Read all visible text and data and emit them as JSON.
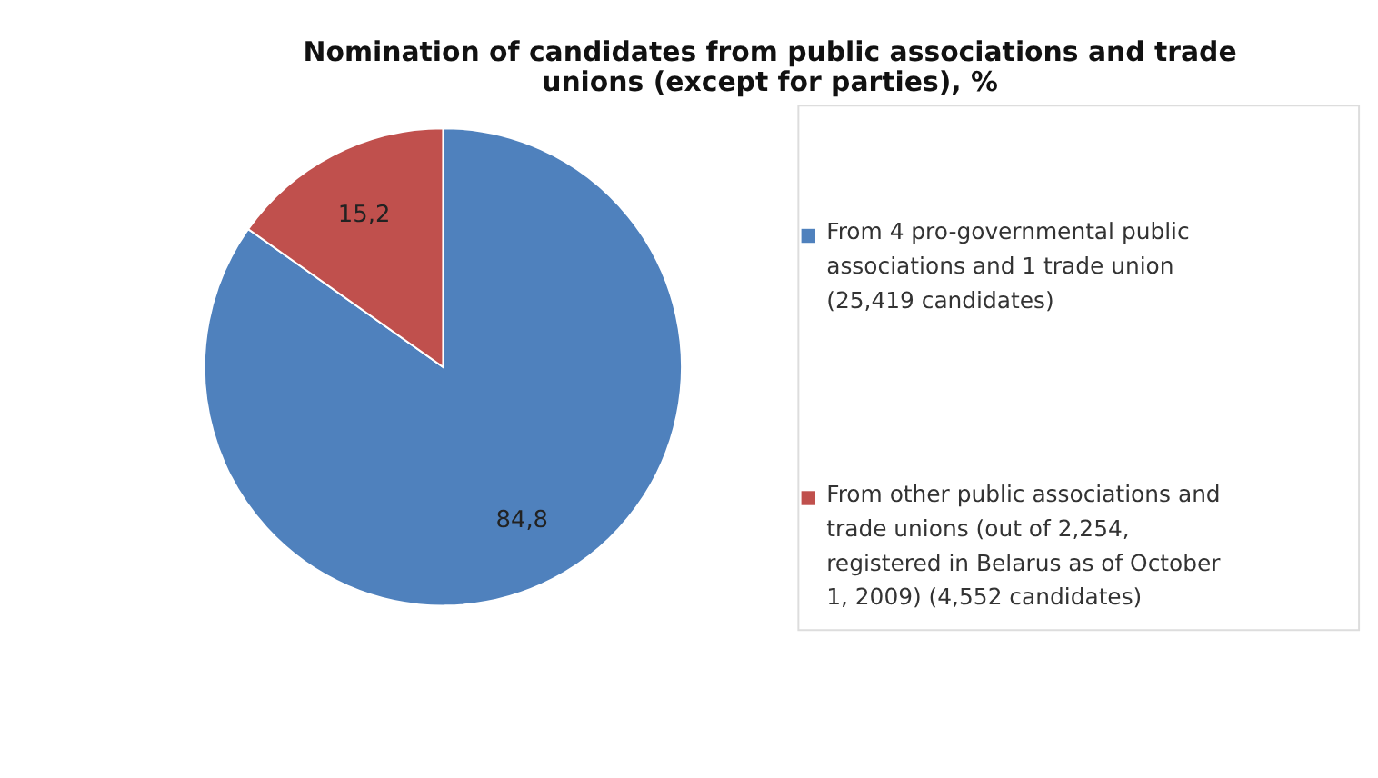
{
  "chart_data": {
    "type": "pie",
    "title": "Nomination of candidates from public associations and trade unions (except for parties),  %",
    "categories": [
      "From 4 pro-governmental public associations and 1 trade union (25,419 candidates)",
      "From other public associations and trade unions (out of 2,254, registered in Belarus as of October 1, 2009) (4,552 candidates)"
    ],
    "values": [
      84.8,
      15.2
    ],
    "colors": [
      "#4f81bd",
      "#c0504d"
    ],
    "value_labels": [
      "84,8",
      "15,2"
    ],
    "legend": "right"
  }
}
